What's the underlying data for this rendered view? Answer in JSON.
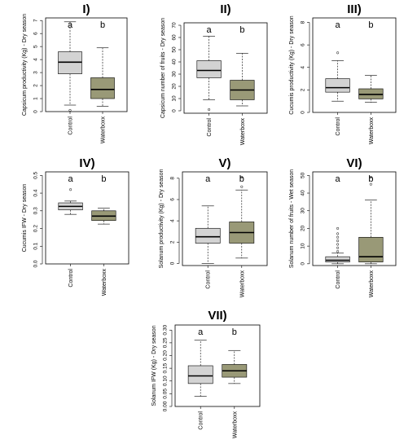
{
  "chart_data": [
    {
      "type": "boxplot",
      "title": "I)",
      "ylabel": "Capsicum productivity (Kg) - Dry season",
      "ylim": [
        0,
        7.2
      ],
      "yticks": [
        0,
        1,
        2,
        3,
        4,
        5,
        6,
        7
      ],
      "categories": [
        "Control",
        "Waterboxx"
      ],
      "letters": [
        "a",
        "b"
      ],
      "colors": [
        "#d3d3d3",
        "#999977"
      ],
      "boxes": [
        {
          "min": 0.5,
          "q1": 2.9,
          "median": 3.8,
          "q3": 4.6,
          "max": 6.9,
          "outliers": [
            0.1
          ]
        },
        {
          "min": 0.4,
          "q1": 1.0,
          "median": 1.7,
          "q3": 2.6,
          "max": 4.9,
          "outliers": []
        }
      ]
    },
    {
      "type": "boxplot",
      "title": "II)",
      "ylabel": "Capsicum number of fruits - Dry season",
      "ylim": [
        -2,
        72
      ],
      "yticks": [
        0,
        10,
        20,
        30,
        40,
        50,
        60,
        70
      ],
      "categories": [
        "Control",
        "Waterboxx"
      ],
      "letters": [
        "a",
        "b"
      ],
      "colors": [
        "#d3d3d3",
        "#999977"
      ],
      "boxes": [
        {
          "min": 9,
          "q1": 27,
          "median": 33,
          "q3": 41,
          "max": 61,
          "outliers": [
            1
          ]
        },
        {
          "min": 4,
          "q1": 9,
          "median": 17,
          "q3": 25,
          "max": 47,
          "outliers": []
        }
      ]
    },
    {
      "type": "boxplot",
      "title": "III)",
      "ylabel": "Cucumis productivity (Kg) - Dry season",
      "ylim": [
        0,
        8.4
      ],
      "yticks": [
        0,
        2,
        4,
        6,
        8
      ],
      "categories": [
        "Control",
        "Waterboxx"
      ],
      "letters": [
        "a",
        "b"
      ],
      "colors": [
        "#d3d3d3",
        "#999977"
      ],
      "boxes": [
        {
          "min": 1.0,
          "q1": 1.8,
          "median": 2.2,
          "q3": 3.0,
          "max": 4.6,
          "outliers": [
            5.3
          ]
        },
        {
          "min": 0.9,
          "q1": 1.2,
          "median": 1.6,
          "q3": 2.1,
          "max": 3.3,
          "outliers": []
        }
      ]
    },
    {
      "type": "boxplot",
      "title": "IV)",
      "ylabel": "Cucumis IFW - Dry season",
      "ylim": [
        0,
        0.52
      ],
      "yticks": [
        0.0,
        0.1,
        0.2,
        0.3,
        0.4,
        0.5
      ],
      "ytickLabels": [
        "0.0",
        "0.1",
        "0.2",
        "0.3",
        "0.4",
        "0.5"
      ],
      "categories": [
        "Control",
        "Waterboxx"
      ],
      "letters": [
        "a",
        "b"
      ],
      "colors": [
        "#d3d3d3",
        "#999977"
      ],
      "boxes": [
        {
          "min": 0.28,
          "q1": 0.305,
          "median": 0.325,
          "q3": 0.345,
          "max": 0.355,
          "outliers": [
            0.42
          ]
        },
        {
          "min": 0.225,
          "q1": 0.245,
          "median": 0.27,
          "q3": 0.3,
          "max": 0.315,
          "outliers": []
        }
      ]
    },
    {
      "type": "boxplot",
      "title": "V)",
      "ylabel": "Solanum productivity (Kg) - Dry season",
      "ylim": [
        -0.2,
        8.6
      ],
      "yticks": [
        0,
        2,
        4,
        6,
        8
      ],
      "categories": [
        "Control",
        "Waterboxx"
      ],
      "letters": [
        "a",
        "b"
      ],
      "colors": [
        "#d3d3d3",
        "#999977"
      ],
      "boxes": [
        {
          "min": 0.0,
          "q1": 1.9,
          "median": 2.5,
          "q3": 3.3,
          "max": 5.4,
          "outliers": []
        },
        {
          "min": 0.5,
          "q1": 1.9,
          "median": 2.9,
          "q3": 3.9,
          "max": 6.9,
          "outliers": [
            7.2,
            8.1
          ]
        }
      ]
    },
    {
      "type": "boxplot",
      "title": "VI)",
      "ylabel": "Solanum number of fruits - Wet season",
      "ylim": [
        -1,
        52
      ],
      "yticks": [
        0,
        10,
        20,
        30,
        40,
        50
      ],
      "categories": [
        "Control",
        "Waterboxx"
      ],
      "letters": [
        "a",
        "b"
      ],
      "colors": [
        "#d3d3d3",
        "#999977"
      ],
      "boxes": [
        {
          "min": 0,
          "q1": 1,
          "median": 2,
          "q3": 4,
          "max": 6,
          "outliers": [
            7,
            9,
            11,
            13,
            15,
            17,
            20
          ]
        },
        {
          "min": 0,
          "q1": 1,
          "median": 4,
          "q3": 15,
          "max": 36,
          "outliers": [
            45,
            49
          ]
        }
      ]
    },
    {
      "type": "boxplot",
      "title": "VII)",
      "ylabel": "Solanum IFW (Kg) - Dry season",
      "ylim": [
        0,
        0.32
      ],
      "yticks": [
        0.0,
        0.05,
        0.1,
        0.15,
        0.2,
        0.25,
        0.3
      ],
      "ytickLabels": [
        "0.00",
        "0.05",
        "0.10",
        "0.15",
        "0.20",
        "0.25",
        "0.30"
      ],
      "categories": [
        "Control",
        "Waterboxx"
      ],
      "letters": [
        "a",
        "b"
      ],
      "colors": [
        "#d3d3d3",
        "#999977"
      ],
      "boxes": [
        {
          "min": 0.04,
          "q1": 0.09,
          "median": 0.12,
          "q3": 0.16,
          "max": 0.26,
          "outliers": []
        },
        {
          "min": 0.09,
          "q1": 0.115,
          "median": 0.14,
          "q3": 0.165,
          "max": 0.22,
          "outliers": []
        }
      ]
    }
  ]
}
